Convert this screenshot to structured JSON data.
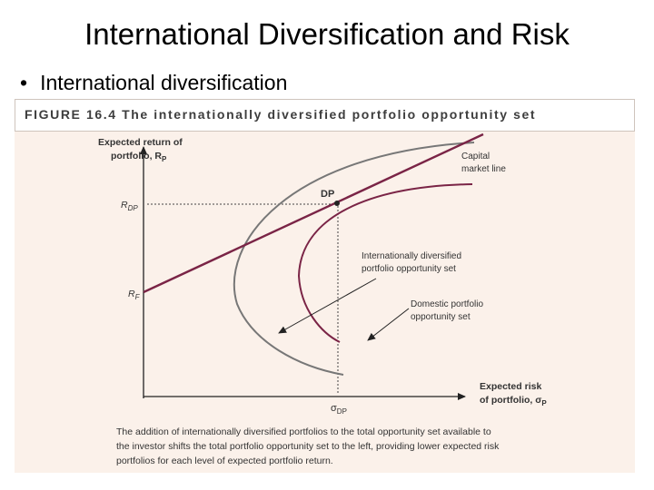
{
  "slide": {
    "title": "International Diversification and Risk",
    "bullet": "International diversification"
  },
  "figure": {
    "header": "FIGURE 16.4 The internationally diversified portfolio opportunity set",
    "y_axis_label_line1": "Expected return of",
    "y_axis_label_line2": "portfolio, R",
    "y_axis_label_sub": "P",
    "x_axis_label_line1": "Expected risk",
    "x_axis_label_line2": "of portfolio, σ",
    "x_axis_label_sub": "P",
    "rdp_label": "R",
    "rdp_sub": "DP",
    "rf_label": "R",
    "rf_sub": "F",
    "sigma_dp_label": "σ",
    "sigma_dp_sub": "DP",
    "dp_point_label": "DP",
    "cml_label_line1": "Capital",
    "cml_label_line2": "market line",
    "intl_set_label_line1": "Internationally diversified",
    "intl_set_label_line2": "portfolio opportunity set",
    "domestic_set_label_line1": "Domestic portfolio",
    "domestic_set_label_line2": "opportunity set",
    "caption_line1": "The addition of internationally diversified portfolios to the total opportunity set available to",
    "caption_line2": "the investor shifts the total portfolio opportunity set to the left, providing lower expected risk",
    "caption_line3": "portfolios for each level of expected portfolio return."
  },
  "colors": {
    "cml": "#7a2446",
    "domestic_curve": "#7a2446",
    "intl_curve": "#777777",
    "panel_bg": "#fbf1ea"
  }
}
